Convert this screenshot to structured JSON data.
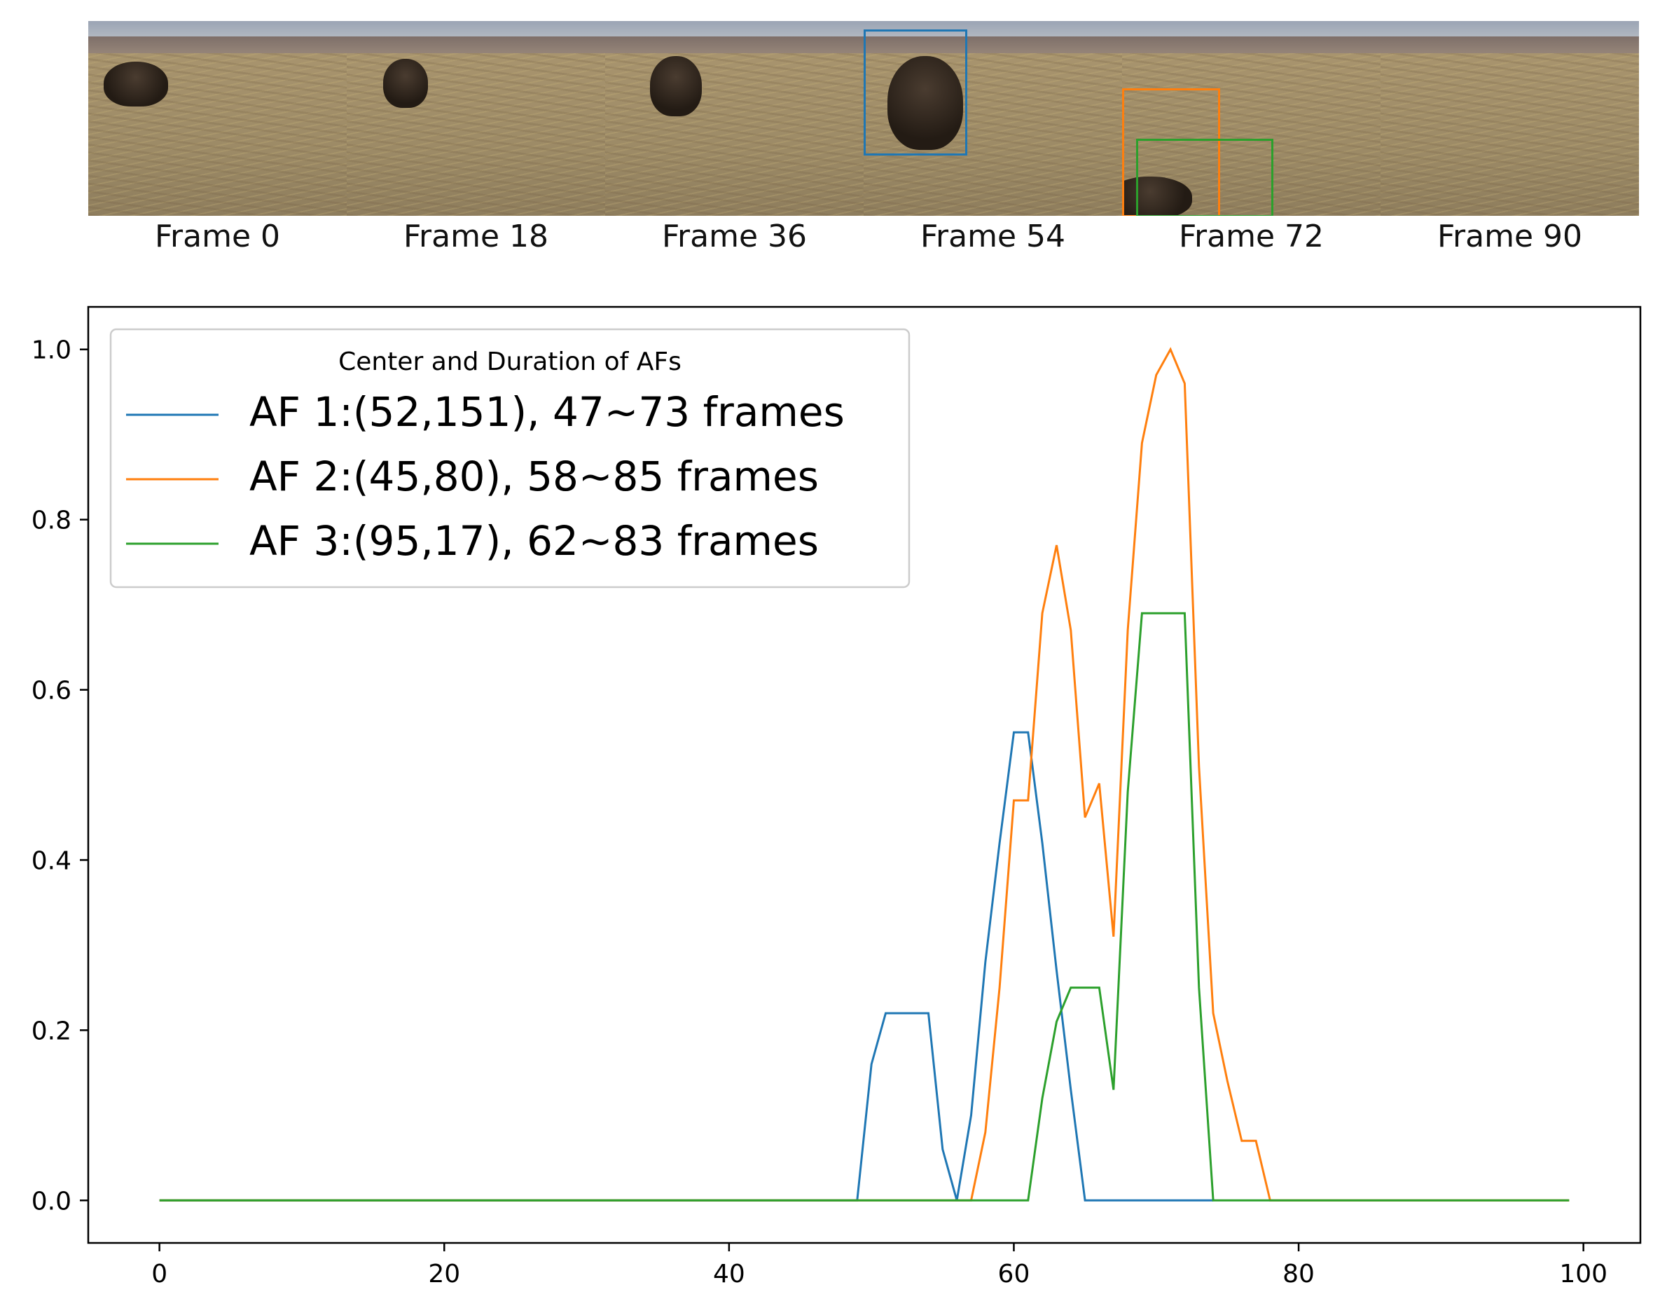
{
  "frames": [
    {
      "label": "Frame 0"
    },
    {
      "label": "Frame 18"
    },
    {
      "label": "Frame 36"
    },
    {
      "label": "Frame 54"
    },
    {
      "label": "Frame 72"
    },
    {
      "label": "Frame 90"
    }
  ],
  "colors": {
    "af1": "#1f77b4",
    "af2": "#ff7f0e",
    "af3": "#2ca02c"
  },
  "chart_data": {
    "type": "line",
    "title": "",
    "xlabel": "",
    "ylabel": "",
    "xlim": [
      -5,
      104
    ],
    "ylim": [
      -0.05,
      1.05
    ],
    "xticks": [
      0,
      20,
      40,
      60,
      80,
      100
    ],
    "yticks": [
      0.0,
      0.2,
      0.4,
      0.6,
      0.8,
      1.0
    ],
    "ytick_labels": [
      "0.0",
      "0.2",
      "0.4",
      "0.6",
      "0.8",
      "1.0"
    ],
    "grid": false,
    "legend": {
      "title": "Center and Duration of AFs",
      "position": "top-left"
    },
    "series": [
      {
        "name": "AF 1:(52,151), 47~73 frames",
        "color": "#1f77b4",
        "points": [
          [
            0,
            0
          ],
          [
            49,
            0
          ],
          [
            50,
            0.16
          ],
          [
            51,
            0.22
          ],
          [
            52,
            0.22
          ],
          [
            53,
            0.22
          ],
          [
            54,
            0.22
          ],
          [
            55,
            0.06
          ],
          [
            56,
            0
          ],
          [
            57,
            0.1
          ],
          [
            58,
            0.28
          ],
          [
            59,
            0.42
          ],
          [
            60,
            0.55
          ],
          [
            61,
            0.55
          ],
          [
            62,
            0.42
          ],
          [
            63,
            0.27
          ],
          [
            64,
            0.13
          ],
          [
            65,
            0
          ],
          [
            70,
            0
          ],
          [
            74,
            0
          ]
        ]
      },
      {
        "name": "AF 2:(45,80), 58~85 frames",
        "color": "#ff7f0e",
        "points": [
          [
            0,
            0
          ],
          [
            57,
            0
          ],
          [
            58,
            0.08
          ],
          [
            59,
            0.25
          ],
          [
            60,
            0.47
          ],
          [
            61,
            0.47
          ],
          [
            62,
            0.69
          ],
          [
            63,
            0.77
          ],
          [
            64,
            0.67
          ],
          [
            65,
            0.45
          ],
          [
            66,
            0.49
          ],
          [
            67,
            0.31
          ],
          [
            68,
            0.67
          ],
          [
            69,
            0.89
          ],
          [
            70,
            0.97
          ],
          [
            71,
            1.0
          ],
          [
            72,
            0.96
          ],
          [
            73,
            0.51
          ],
          [
            74,
            0.22
          ],
          [
            75,
            0.14
          ],
          [
            76,
            0.07
          ],
          [
            77,
            0.07
          ],
          [
            78,
            0
          ],
          [
            99,
            0
          ]
        ]
      },
      {
        "name": "AF 3:(95,17), 62~83 frames",
        "color": "#2ca02c",
        "points": [
          [
            0,
            0
          ],
          [
            61,
            0
          ],
          [
            62,
            0.12
          ],
          [
            63,
            0.21
          ],
          [
            64,
            0.25
          ],
          [
            65,
            0.25
          ],
          [
            66,
            0.25
          ],
          [
            67,
            0.13
          ],
          [
            68,
            0.48
          ],
          [
            69,
            0.69
          ],
          [
            70,
            0.69
          ],
          [
            71,
            0.69
          ],
          [
            72,
            0.69
          ],
          [
            73,
            0.25
          ],
          [
            74,
            0
          ],
          [
            99,
            0
          ]
        ]
      }
    ]
  }
}
